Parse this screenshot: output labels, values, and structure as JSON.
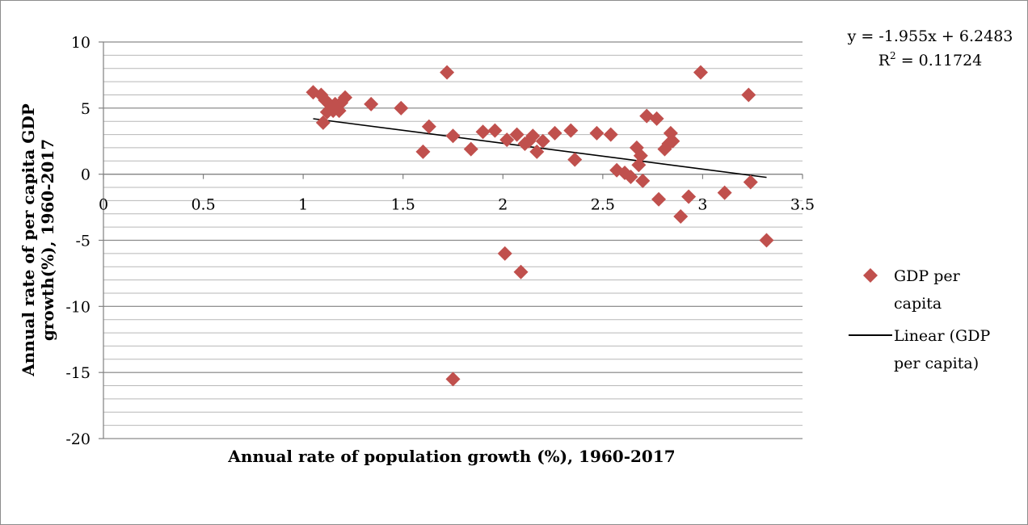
{
  "chart_data": {
    "type": "scatter",
    "xlabel": "Annual rate of population growth (%), 1960-2017",
    "ylabel_lines": [
      "Annual rate of per capita GDP",
      "growth(%), 1960-2017"
    ],
    "xlim": [
      0,
      3.5
    ],
    "ylim": [
      -20,
      10
    ],
    "x_ticks": [
      0,
      0.5,
      1,
      1.5,
      2,
      2.5,
      3,
      3.5
    ],
    "x_tick_labels": [
      "0",
      "0.5",
      "1",
      "1.5",
      "2",
      "2.5",
      "3",
      "3.5"
    ],
    "y_ticks": [
      10,
      5,
      0,
      -5,
      -10,
      -15,
      -20
    ],
    "y_tick_labels": [
      "10",
      "5",
      "0",
      "-5",
      "-10",
      "-15",
      "-20"
    ],
    "minor_gridline_step": 1,
    "grid": true,
    "legend_position": "right",
    "legend": {
      "series_lines": [
        "GDP per",
        "capita"
      ],
      "trend_lines": [
        "Linear (GDP",
        "per capita)"
      ]
    },
    "marker_color": "#c0504d",
    "trend_color": "#000000",
    "trendline": {
      "slope": -1.955,
      "intercept": 6.2483,
      "x_range": [
        1.05,
        3.32
      ],
      "equation": "y = -1.955x + 6.2483",
      "r2_prefix": "R",
      "r2_sup": "2",
      "r2_value": " = 0.11724"
    },
    "series": [
      {
        "points": [
          [
            1.05,
            6.2
          ],
          [
            1.09,
            6.0
          ],
          [
            1.1,
            3.9
          ],
          [
            1.11,
            5.6
          ],
          [
            1.12,
            4.7
          ],
          [
            1.13,
            5.3
          ],
          [
            1.15,
            4.8
          ],
          [
            1.16,
            5.3
          ],
          [
            1.18,
            4.8
          ],
          [
            1.19,
            5.4
          ],
          [
            1.21,
            5.8
          ],
          [
            1.34,
            5.3
          ],
          [
            1.49,
            5.0
          ],
          [
            1.6,
            1.7
          ],
          [
            1.63,
            3.6
          ],
          [
            1.72,
            7.7
          ],
          [
            1.75,
            2.9
          ],
          [
            1.75,
            -15.5
          ],
          [
            1.84,
            1.9
          ],
          [
            1.9,
            3.2
          ],
          [
            1.96,
            3.3
          ],
          [
            2.01,
            -6.0
          ],
          [
            2.02,
            2.6
          ],
          [
            2.07,
            3.0
          ],
          [
            2.09,
            -7.4
          ],
          [
            2.11,
            2.3
          ],
          [
            2.13,
            2.5
          ],
          [
            2.15,
            2.9
          ],
          [
            2.17,
            1.7
          ],
          [
            2.2,
            2.5
          ],
          [
            2.26,
            3.1
          ],
          [
            2.34,
            3.3
          ],
          [
            2.36,
            1.1
          ],
          [
            2.47,
            3.1
          ],
          [
            2.54,
            3.0
          ],
          [
            2.57,
            0.3
          ],
          [
            2.61,
            0.1
          ],
          [
            2.64,
            -0.2
          ],
          [
            2.67,
            2.0
          ],
          [
            2.68,
            0.7
          ],
          [
            2.69,
            1.4
          ],
          [
            2.7,
            -0.5
          ],
          [
            2.72,
            4.4
          ],
          [
            2.77,
            4.2
          ],
          [
            2.78,
            -1.9
          ],
          [
            2.81,
            1.9
          ],
          [
            2.83,
            2.3
          ],
          [
            2.84,
            3.1
          ],
          [
            2.85,
            2.5
          ],
          [
            2.89,
            -3.2
          ],
          [
            2.93,
            -1.7
          ],
          [
            2.99,
            7.7
          ],
          [
            3.11,
            -1.4
          ],
          [
            3.23,
            6.0
          ],
          [
            3.24,
            -0.6
          ],
          [
            3.32,
            -5.0
          ]
        ]
      }
    ]
  }
}
